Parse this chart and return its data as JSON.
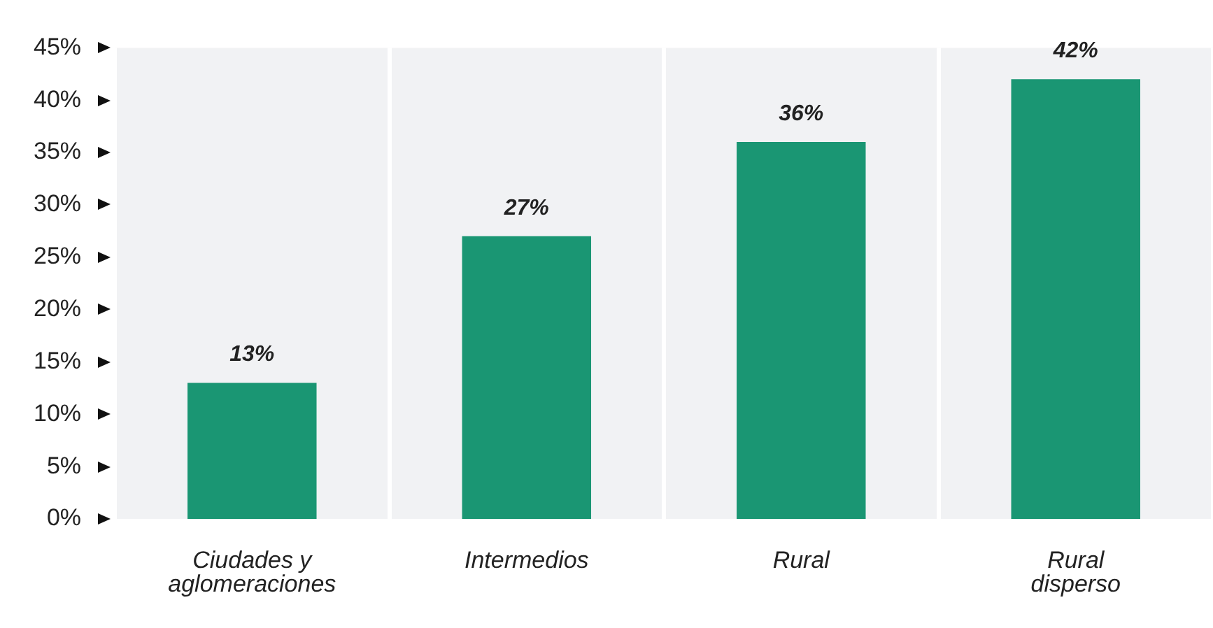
{
  "chart_data": {
    "type": "bar",
    "categories": [
      "Ciudades y aglomeraciones",
      "Intermedios",
      "Rural",
      "Rural disperso"
    ],
    "values": [
      13,
      27,
      36,
      42
    ],
    "value_labels": [
      "13%",
      "27%",
      "36%",
      "42%"
    ],
    "color": "#1a9673",
    "ylim": [
      0,
      45
    ],
    "yticks": [
      {
        "value": 0,
        "label": "0%"
      },
      {
        "value": 5,
        "label": "5%"
      },
      {
        "value": 10,
        "label": "10%"
      },
      {
        "value": 15,
        "label": "15%"
      },
      {
        "value": 20,
        "label": "20%"
      },
      {
        "value": 25,
        "label": "25%"
      },
      {
        "value": 30,
        "label": "30%"
      },
      {
        "value": 35,
        "label": "35%"
      },
      {
        "value": 40,
        "label": "40%"
      },
      {
        "value": 45,
        "label": "45%"
      }
    ],
    "grid": "x",
    "legend": false
  }
}
